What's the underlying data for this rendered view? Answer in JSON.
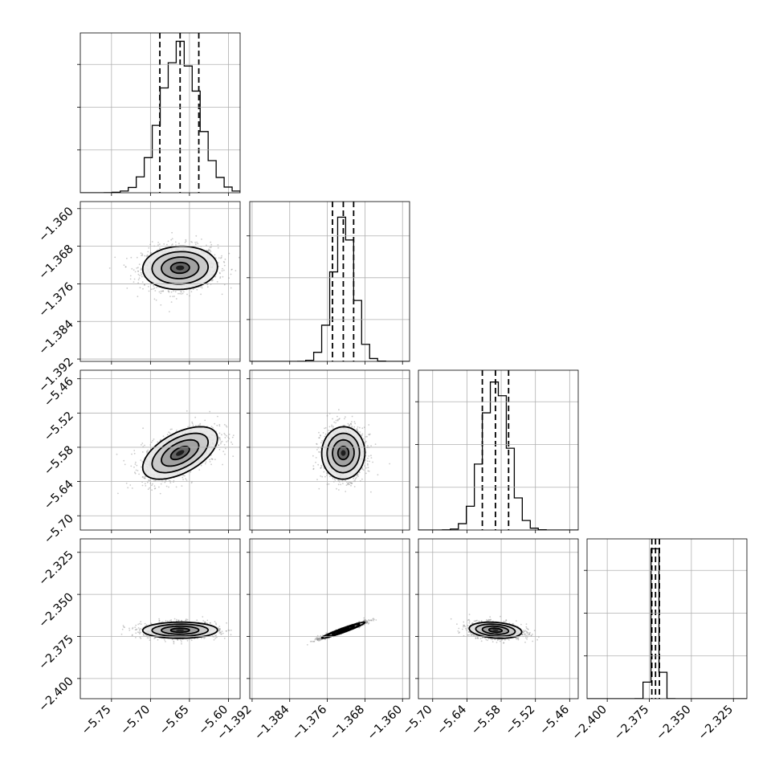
{
  "chart_data": {
    "type": "corner",
    "grid": true,
    "parameters": [
      {
        "range": [
          -5.79,
          -5.585
        ],
        "ticks": [
          -5.75,
          -5.7,
          -5.65,
          -5.6
        ],
        "tick_labels": [
          "−5.75",
          "−5.70",
          "−5.65",
          "−5.60"
        ],
        "median": -5.662,
        "quantiles": [
          -5.688,
          -5.662,
          -5.638
        ],
        "sigma": 0.024,
        "hist_peak_fraction": 0.91
      },
      {
        "range": [
          -1.3925,
          -1.3585
        ],
        "ticks": [
          -1.392,
          -1.384,
          -1.376,
          -1.368,
          -1.36
        ],
        "tick_labels": [
          "−1.392",
          "−1.384",
          "−1.376",
          "−1.368",
          "−1.360"
        ],
        "median": -1.3726,
        "quantiles": [
          -1.3749,
          -1.3726,
          -1.3704
        ],
        "sigma": 0.0023,
        "hist_peak_fraction": 0.89
      },
      {
        "range": [
          -5.725,
          -5.445
        ],
        "ticks": [
          -5.7,
          -5.64,
          -5.58,
          -5.52,
          -5.46
        ],
        "tick_labels": [
          "−5.70",
          "−5.64",
          "−5.58",
          "−5.52",
          "−5.46"
        ],
        "median": -5.59,
        "quantiles": [
          -5.613,
          -5.59,
          -5.567
        ],
        "sigma": 0.023,
        "hist_peak_fraction": 0.91
      },
      {
        "range": [
          -2.412,
          -2.317
        ],
        "ticks": [
          -2.4,
          -2.375,
          -2.35,
          -2.325
        ],
        "tick_labels": [
          "−2.400",
          "−2.375",
          "−2.350",
          "−2.325"
        ],
        "median": -2.3713,
        "quantiles": [
          -2.3735,
          -2.3713,
          -2.369
        ],
        "sigma": 0.0024,
        "hist_peak_fraction": 0.91
      }
    ],
    "correlations": [
      [
        1,
        0.05,
        0.55,
        0.02
      ],
      [
        0.05,
        1,
        0.02,
        0.96
      ],
      [
        0.55,
        0.02,
        1,
        -0.22
      ],
      [
        0.02,
        0.96,
        -0.22,
        1
      ]
    ]
  }
}
